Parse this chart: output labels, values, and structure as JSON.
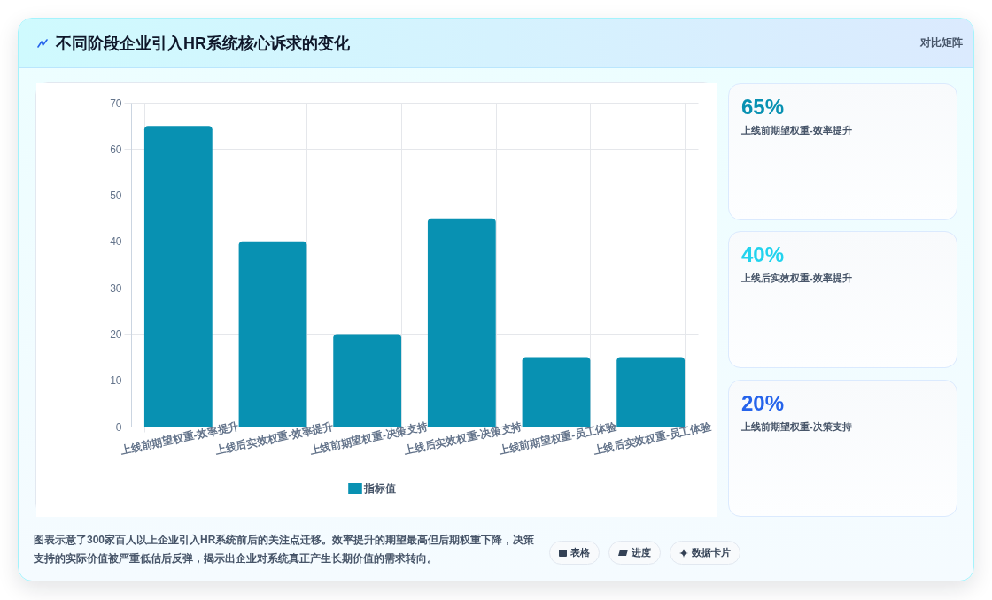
{
  "chart_data": [
    {
      "type": "other",
      "title": "不同阶段企业引入HR系统核心诉求的变化",
      "subtitle": "对比矩阵"
    },
    {
      "type": "bar",
      "categories": [
        "上线前期望权重-效率提升",
        "上线后实效权重-效率提升",
        "上线前期望权重-决策支持",
        "上线后实效权重-决策支持",
        "上线前期望权重-员工体验",
        "上线后实效权重-员工体验"
      ],
      "series": [
        {
          "name": "指标值",
          "color": "#0891b2",
          "values": [
            65,
            40,
            20,
            45,
            15,
            15
          ]
        }
      ],
      "ylim": [
        0,
        70
      ],
      "yticks": [
        0,
        10,
        20,
        30,
        40,
        50,
        60,
        70
      ],
      "grid": true,
      "legend": "bottom",
      "annotations": [
        "图表示意了300家百人以上企业引入HR系统前后的关注点迁移。效率提升的期望最高但后期权重下降，决策支持的实际价值被严重低估后反弹，揭示出企业对系统真正产生长期价值的需求转向。"
      ]
    },
    {
      "type": "other",
      "title": "65%",
      "subtitle": "上线前期望权重-效率提升",
      "color": "#0891b2"
    },
    {
      "type": "other",
      "title": "40%",
      "subtitle": "上线后实效权重-效率提升",
      "color": "#22d3ee"
    },
    {
      "type": "other",
      "title": "20%",
      "subtitle": "上线前期望权重-决策支持",
      "color": "#2563eb"
    },
    {
      "type": "other",
      "annotations": [
        "表格",
        "进度",
        "数据卡片"
      ]
    }
  ]
}
